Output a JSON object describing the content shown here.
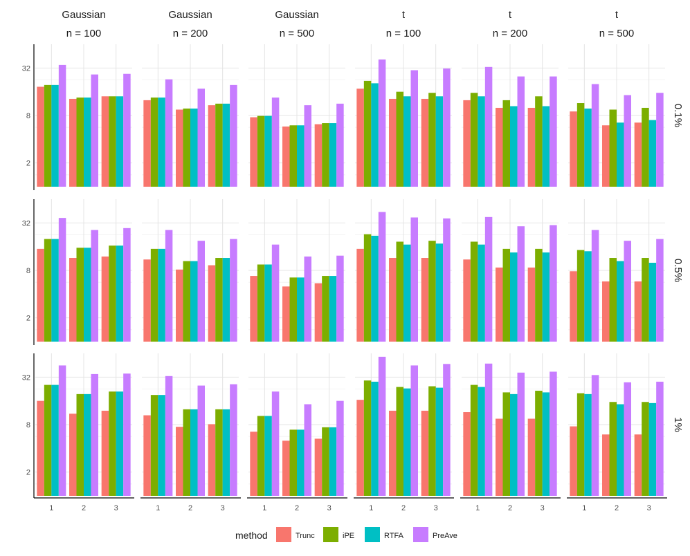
{
  "chart_data": {
    "type": "bar",
    "y_scale": "log2",
    "ylim": [
      1,
      64
    ],
    "y_ticks": [
      2,
      8,
      32
    ],
    "y_tick_labels": [
      "2",
      "8",
      "32"
    ],
    "categories": [
      "1",
      "2",
      "3"
    ],
    "column_strips": [
      {
        "dist": "Gaussian",
        "n": "n = 100"
      },
      {
        "dist": "Gaussian",
        "n": "n = 200"
      },
      {
        "dist": "Gaussian",
        "n": "n = 500"
      },
      {
        "dist": "t",
        "n": "n = 100"
      },
      {
        "dist": "t",
        "n": "n = 200"
      },
      {
        "dist": "t",
        "n": "n = 500"
      }
    ],
    "row_strips": [
      "0.1%",
      "0.5%",
      "1%"
    ],
    "legend": {
      "title": "method",
      "position": "bottom",
      "entries": [
        {
          "name": "Trunc",
          "color": "#F8766D"
        },
        {
          "name": "iPE",
          "color": "#7CAE00"
        },
        {
          "name": "RTFA",
          "color": "#00BFC4"
        },
        {
          "name": "PreAve",
          "color": "#C77CFF"
        }
      ]
    },
    "grid": true,
    "panels": [
      [
        [
          [
            18.5,
            19.5,
            19.5,
            35
          ],
          [
            13,
            13.5,
            13.5,
            26.5
          ],
          [
            14,
            14,
            14,
            27
          ]
        ],
        [
          [
            12.5,
            13.5,
            13.5,
            23
          ],
          [
            9.5,
            9.8,
            9.8,
            17.5
          ],
          [
            10.8,
            11.3,
            11.3,
            19.5
          ]
        ],
        [
          [
            7.6,
            7.9,
            7.9,
            13.5
          ],
          [
            5.8,
            6,
            6,
            10.8
          ],
          [
            6.2,
            6.4,
            6.4,
            11.3
          ]
        ],
        [
          [
            17.5,
            22,
            20.5,
            41
          ],
          [
            13,
            16,
            14,
            30
          ],
          [
            13,
            15.5,
            14,
            31.5
          ]
        ],
        [
          [
            12.5,
            15.5,
            14,
            33
          ],
          [
            10,
            12.5,
            10.5,
            25
          ],
          [
            10,
            14,
            10.5,
            25
          ]
        ],
        [
          [
            9,
            11.5,
            9.8,
            20
          ],
          [
            6,
            9.5,
            6.5,
            14.5
          ],
          [
            6.5,
            10,
            7,
            15.5
          ]
        ]
      ],
      [
        [
          [
            15,
            20,
            20,
            37
          ],
          [
            11.5,
            15.5,
            15.5,
            26
          ],
          [
            12,
            16.5,
            16.5,
            27.5
          ]
        ],
        [
          [
            11,
            15,
            15,
            26
          ],
          [
            8.2,
            10.5,
            10.5,
            19
          ],
          [
            9.3,
            11.5,
            11.5,
            20
          ]
        ],
        [
          [
            6.8,
            9.5,
            9.5,
            17
          ],
          [
            5,
            6.5,
            6.5,
            12
          ],
          [
            5.5,
            6.8,
            6.8,
            12.3
          ]
        ],
        [
          [
            15,
            23,
            22,
            44
          ],
          [
            11.5,
            18.5,
            17,
            37.5
          ],
          [
            11.5,
            19,
            17.5,
            36.5
          ]
        ],
        [
          [
            11,
            18.5,
            17,
            38
          ],
          [
            8.7,
            15,
            13.5,
            29
          ],
          [
            8.7,
            15,
            13.5,
            30
          ]
        ],
        [
          [
            7.8,
            14.5,
            14,
            26
          ],
          [
            5.8,
            11.5,
            10.5,
            19
          ],
          [
            5.8,
            11.5,
            10,
            20
          ]
        ]
      ],
      [
        [
          [
            16,
            25.5,
            25.5,
            45
          ],
          [
            11,
            19.5,
            19.5,
            35
          ],
          [
            12,
            21,
            21,
            35.5
          ]
        ],
        [
          [
            10.5,
            19,
            19,
            33
          ],
          [
            7.5,
            12.5,
            12.5,
            25
          ],
          [
            8.1,
            12.5,
            12.5,
            26
          ]
        ],
        [
          [
            6.5,
            10.3,
            10.3,
            21
          ],
          [
            5,
            6.9,
            6.9,
            14.5
          ],
          [
            5.3,
            7.4,
            7.4,
            16
          ]
        ],
        [
          [
            16.5,
            29,
            28,
            58
          ],
          [
            12,
            24,
            23,
            45
          ],
          [
            12,
            24.5,
            23.5,
            47
          ]
        ],
        [
          [
            11.5,
            25.5,
            24,
            47.5
          ],
          [
            9.5,
            20.5,
            19.5,
            36.5
          ],
          [
            9.5,
            21.5,
            20.5,
            37.5
          ]
        ],
        [
          [
            7.6,
            20,
            19.5,
            34
          ],
          [
            6,
            15.5,
            14.5,
            27.5
          ],
          [
            6,
            15.5,
            15,
            28
          ]
        ]
      ]
    ]
  }
}
